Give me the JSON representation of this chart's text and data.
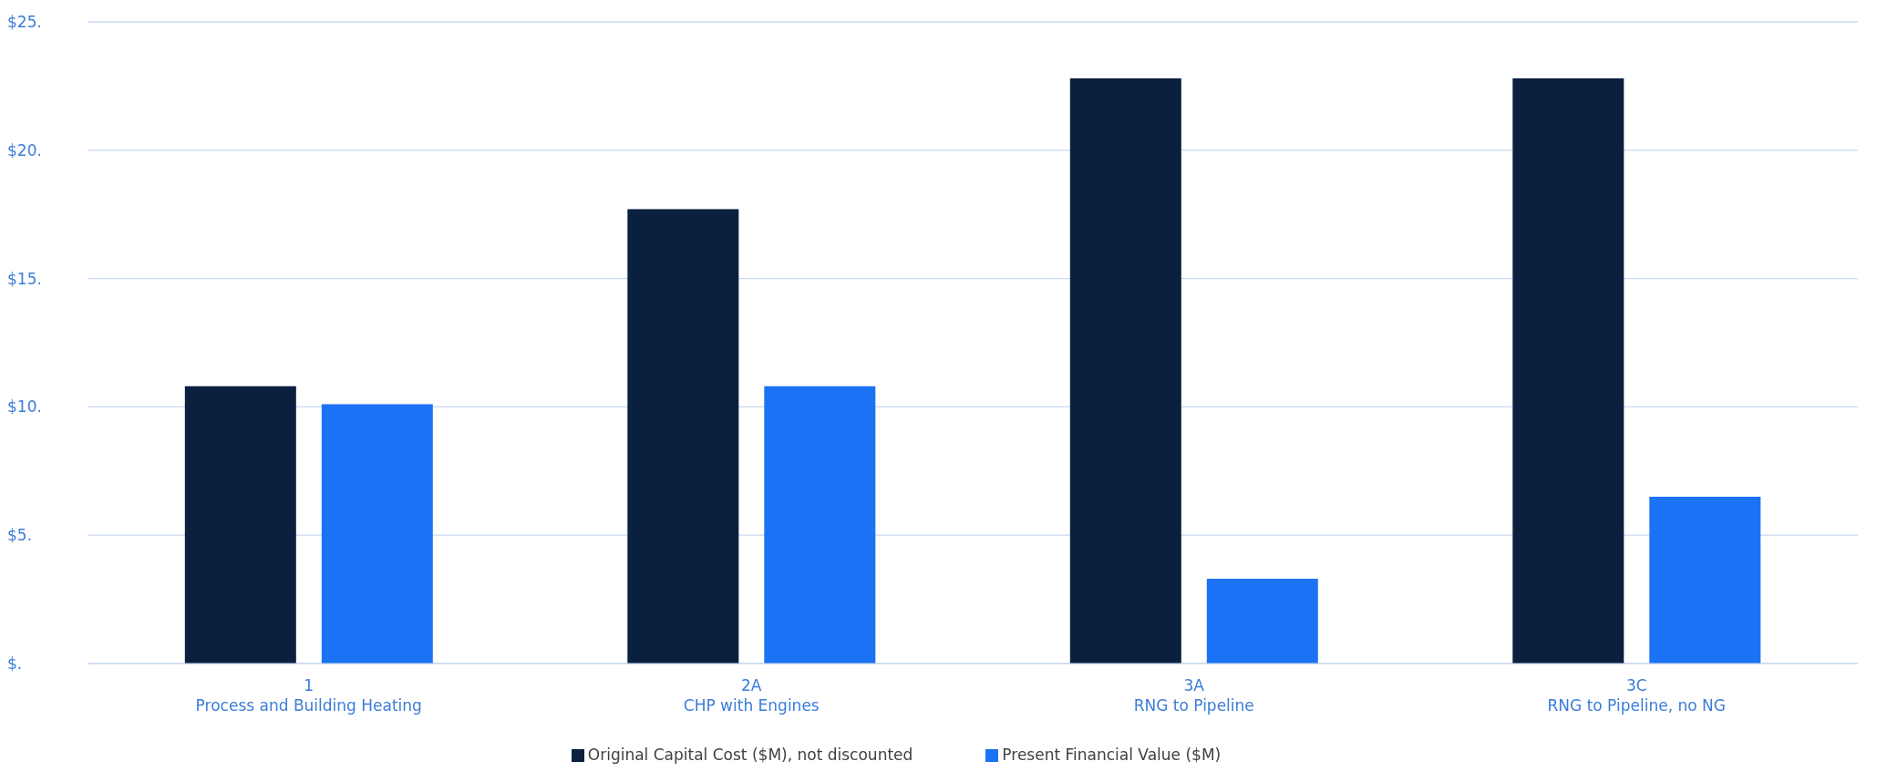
{
  "chart_data": {
    "type": "bar",
    "categories": [
      "1\nProcess and Building Heating",
      "2A\nCHP with Engines",
      "3A\nRNG to Pipeline",
      "3C\nRNG to Pipeline, no NG"
    ],
    "series": [
      {
        "name": "Original Capital Cost ($M), not discounted",
        "color": "#0b1f3f",
        "values": [
          10.8,
          17.7,
          22.8,
          22.8
        ]
      },
      {
        "name": "Present Financial Value ($M)",
        "color": "#1b72f5",
        "values": [
          10.1,
          10.8,
          3.3,
          6.5
        ]
      }
    ],
    "ylim": [
      0,
      25
    ],
    "yticks": [
      {
        "value": 0,
        "label": "$."
      },
      {
        "value": 5,
        "label": "$5."
      },
      {
        "value": 10,
        "label": "$10."
      },
      {
        "value": 15,
        "label": "$15."
      },
      {
        "value": 20,
        "label": "$20."
      },
      {
        "value": 25,
        "label": "$25."
      }
    ],
    "grid": "y",
    "legend": "bottom"
  }
}
